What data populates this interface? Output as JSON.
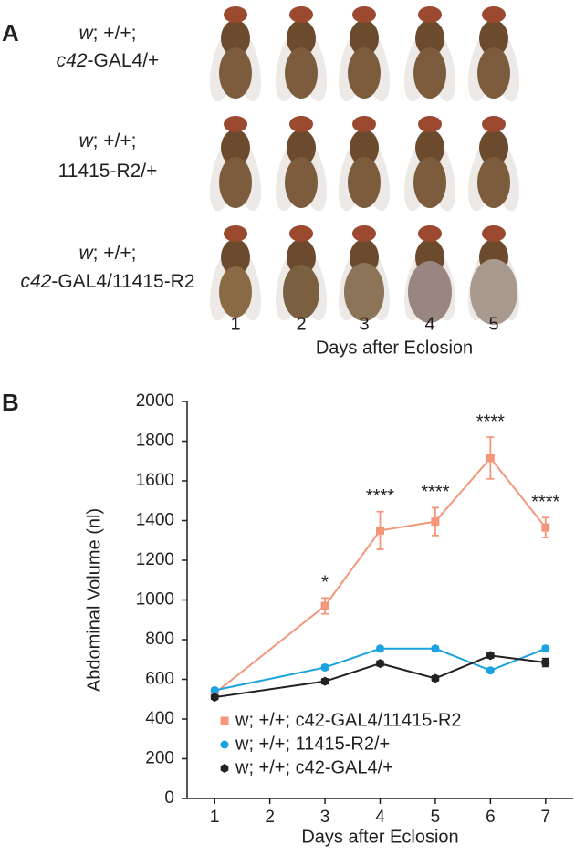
{
  "panel_a": {
    "label": "A",
    "rows": [
      {
        "line1": [
          {
            "text": "w",
            "italic": true
          },
          {
            "text": "; +/+;",
            "italic": false
          }
        ],
        "line2": [
          {
            "text": "c42",
            "italic": true
          },
          {
            "text": "-GAL4/+",
            "italic": false
          }
        ]
      },
      {
        "line1": [
          {
            "text": "w",
            "italic": true
          },
          {
            "text": "; +/+;",
            "italic": false
          }
        ],
        "line2": [
          {
            "text": "11415-R2/+",
            "italic": false
          }
        ]
      },
      {
        "line1": [
          {
            "text": "w",
            "italic": true
          },
          {
            "text": "; +/+;",
            "italic": false
          }
        ],
        "line2": [
          {
            "text": "c42",
            "italic": true
          },
          {
            "text": "-GAL4/11415-R2",
            "italic": false
          }
        ]
      }
    ],
    "days": [
      "1",
      "2",
      "3",
      "4",
      "5"
    ],
    "xlabel": "Days after Eclosion"
  },
  "chart_data": {
    "type": "line",
    "panel_label": "B",
    "xlabel": "Days after Eclosion",
    "ylabel": "Abdominal Volume (nl)",
    "x": [
      1,
      3,
      4,
      5,
      6,
      7
    ],
    "xlim": [
      0.5,
      7.5
    ],
    "xticks": [
      1,
      2,
      3,
      4,
      5,
      6,
      7
    ],
    "ylim": [
      0,
      2000
    ],
    "yticks": [
      0,
      200,
      400,
      600,
      800,
      1000,
      1200,
      1400,
      1600,
      1800,
      2000
    ],
    "legend": "lower left",
    "series": [
      {
        "name": "w; +/+; c42-GAL4/11415-R2",
        "color": "#f4967a",
        "marker": "square",
        "values": [
          530,
          970,
          1350,
          1395,
          1715,
          1365
        ],
        "errors": [
          10,
          40,
          95,
          70,
          105,
          50
        ]
      },
      {
        "name": "w; +/+; 11415-R2/+",
        "color": "#1aa3e0",
        "marker": "circle",
        "values": [
          545,
          660,
          755,
          755,
          645,
          755
        ],
        "errors": [
          8,
          10,
          10,
          10,
          10,
          12
        ]
      },
      {
        "name": "w; +/+; c42-GAL4/+",
        "color": "#222222",
        "marker": "hexagon",
        "values": [
          510,
          590,
          680,
          605,
          720,
          685
        ],
        "errors": [
          8,
          12,
          12,
          12,
          12,
          20
        ]
      }
    ],
    "annotations": [
      {
        "x": 3,
        "text": "*"
      },
      {
        "x": 4,
        "text": "****"
      },
      {
        "x": 5,
        "text": "****"
      },
      {
        "x": 6,
        "text": "****"
      },
      {
        "x": 7,
        "text": "****"
      }
    ]
  }
}
